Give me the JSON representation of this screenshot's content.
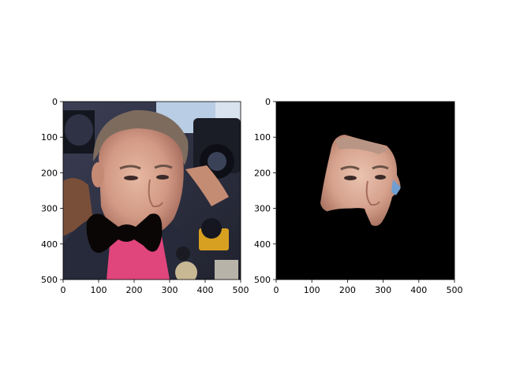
{
  "chart_data": [
    {
      "type": "image",
      "title": "",
      "xlabel": "",
      "ylabel": "",
      "xlim": [
        0,
        500
      ],
      "ylim": [
        500,
        0
      ],
      "xticks": [
        0,
        100,
        200,
        300,
        400,
        500
      ],
      "yticks": [
        0,
        100,
        200,
        300,
        400,
        500
      ],
      "xtick_labels": [
        "0",
        "100",
        "200",
        "300",
        "400",
        "500"
      ],
      "ytick_labels": [
        "0",
        "100",
        "200",
        "300",
        "400",
        "500"
      ],
      "grid": false,
      "content": "photo of a man's face with a black bow-tie shape drawn over his mouth and chin"
    },
    {
      "type": "image",
      "title": "",
      "xlabel": "",
      "ylabel": "",
      "xlim": [
        0,
        500
      ],
      "ylim": [
        500,
        0
      ],
      "xticks": [
        0,
        100,
        200,
        300,
        400,
        500
      ],
      "yticks": [
        0,
        100,
        200,
        300,
        400,
        500
      ],
      "xtick_labels": [
        "0",
        "100",
        "200",
        "300",
        "400",
        "500"
      ],
      "ytick_labels": [
        "0",
        "100",
        "200",
        "300",
        "400",
        "500"
      ],
      "grid": false,
      "content": "segmented face region on a black background"
    }
  ],
  "colors": {
    "face_mask_background": "#000000",
    "bow_tie": "#0a0605",
    "shirt": "#e0457c",
    "skin": "#d9a58e",
    "jacket": "#2a2d3e",
    "microphone": "#d8a020"
  }
}
